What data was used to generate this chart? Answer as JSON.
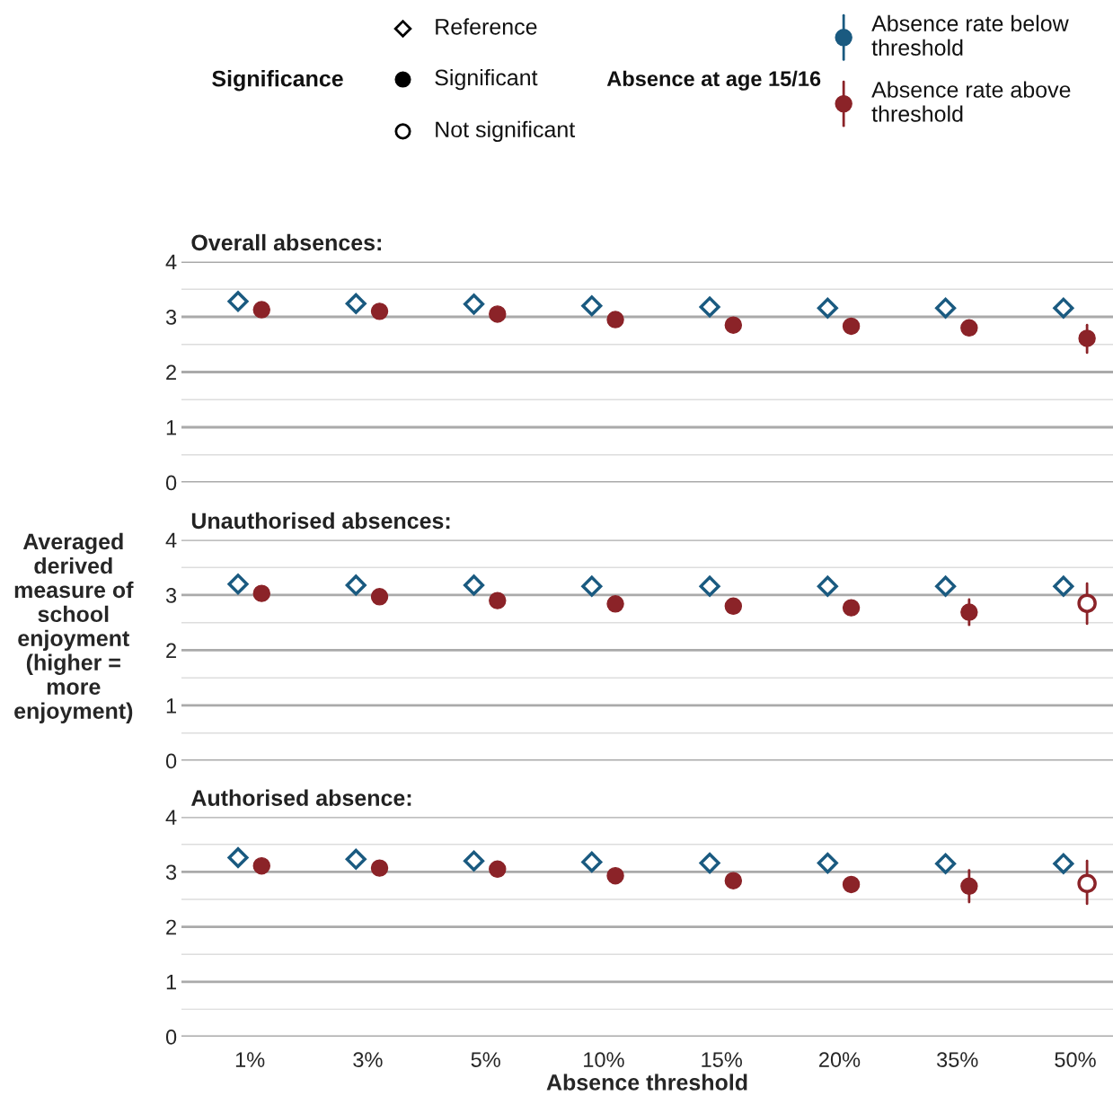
{
  "chart_data": [
    {
      "type": "scatter",
      "title": "Overall absences:",
      "categories": [
        null,
        null,
        null,
        null,
        null,
        null,
        null,
        null
      ],
      "ylim": [
        0,
        4
      ],
      "yticks": [
        0,
        1,
        2,
        3,
        4
      ],
      "grid": "y",
      "legend": "top right",
      "legend_title": "Absence at age 15/16",
      "annotations": [
        "Significance",
        "Reference",
        "Significant",
        "Not significant"
      ],
      "series": [
        {
          "name": "Absence rate below threshold",
          "color": "#1a5a80",
          "marker": "diamond",
          "values": [
            3.28,
            3.24,
            3.23,
            3.2,
            3.18,
            3.16,
            3.16,
            3.16
          ]
        },
        {
          "name": "Absence rate above threshold",
          "color": "#8b2328",
          "marker": "circle",
          "values": [
            3.13,
            3.1,
            3.05,
            2.95,
            2.85,
            2.83,
            2.8,
            2.61
          ],
          "errors": [
            null,
            null,
            null,
            null,
            null,
            null,
            null,
            [
              2.35,
              2.85
            ]
          ]
        },
        {
          "color": "#8b2328",
          "marker": "circle",
          "values": [
            null,
            null,
            null,
            null,
            null,
            null,
            null,
            null
          ]
        }
      ]
    },
    {
      "type": "scatter",
      "title": "Unauthorised absences:",
      "ylabel": "Averaged derived measure of school enjoyment (higher = more enjoyment)",
      "categories": [
        null,
        null,
        null,
        null,
        null,
        null,
        null,
        null
      ],
      "ylim": [
        0,
        4
      ],
      "yticks": [
        0,
        1,
        2,
        3,
        4
      ],
      "grid": "y",
      "series": [
        {
          "color": "#1a5a80",
          "marker": "diamond",
          "values": [
            3.2,
            3.18,
            3.18,
            3.16,
            3.16,
            3.16,
            3.16,
            3.16
          ]
        },
        {
          "color": "#8b2328",
          "marker": "circle",
          "values": [
            3.03,
            2.97,
            2.9,
            2.84,
            2.8,
            2.77,
            2.69,
            null
          ],
          "errors": [
            null,
            null,
            null,
            null,
            null,
            null,
            [
              2.46,
              2.92
            ],
            null
          ]
        },
        {
          "color": "#8b2328",
          "marker": "circle",
          "values": [
            null,
            null,
            null,
            null,
            null,
            null,
            null,
            2.85
          ],
          "errors": [
            null,
            null,
            null,
            null,
            null,
            null,
            null,
            [
              2.48,
              3.21
            ]
          ]
        }
      ]
    },
    {
      "type": "scatter",
      "title": "Authorised absence:",
      "xlabel": "Absence threshold",
      "categories": [
        "1%",
        "3%",
        "5%",
        "10%",
        "15%",
        "20%",
        "35%",
        "50%"
      ],
      "ylim": [
        0,
        4
      ],
      "yticks": [
        0,
        1,
        2,
        3,
        4
      ],
      "grid": "y",
      "series": [
        {
          "color": "#1a5a80",
          "marker": "diamond",
          "values": [
            3.26,
            3.23,
            3.2,
            3.18,
            3.16,
            3.16,
            3.15,
            3.15
          ]
        },
        {
          "color": "#8b2328",
          "marker": "circle",
          "values": [
            3.11,
            3.07,
            3.05,
            2.93,
            2.84,
            2.77,
            2.74,
            null
          ],
          "errors": [
            null,
            null,
            null,
            null,
            null,
            null,
            [
              2.45,
              3.03
            ],
            null
          ]
        },
        {
          "color": "#8b2328",
          "marker": "circle",
          "values": [
            null,
            null,
            null,
            null,
            null,
            null,
            null,
            2.79
          ],
          "errors": [
            null,
            null,
            null,
            null,
            null,
            null,
            null,
            [
              2.42,
              3.2
            ]
          ]
        }
      ]
    }
  ]
}
